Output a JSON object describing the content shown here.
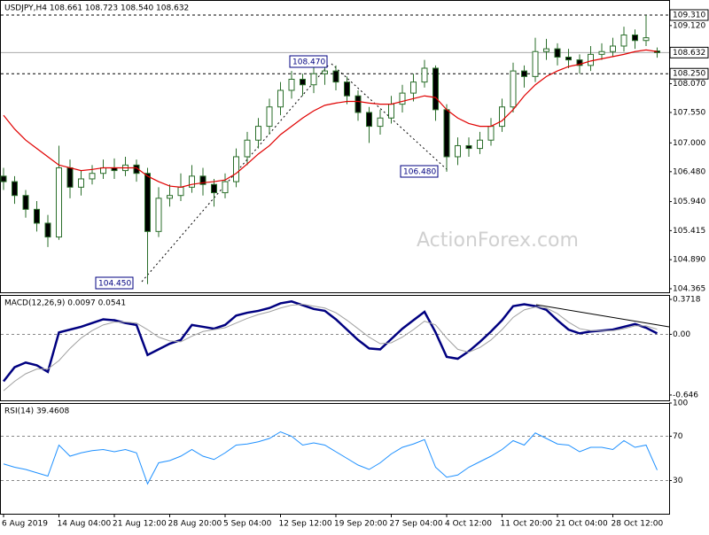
{
  "chart_data": [
    {
      "type": "candlestick",
      "title": "USDJPY,H4  108.661 108.723 108.540 108.632",
      "watermark": "ActionForex.com",
      "categories": [
        "6 Aug 2019",
        null,
        null,
        null,
        null,
        "14 Aug 04:00",
        null,
        null,
        null,
        null,
        "21 Aug 12:00",
        null,
        null,
        null,
        null,
        "28 Aug 20:00",
        null,
        null,
        null,
        null,
        "5 Sep 04:00",
        null,
        null,
        null,
        null,
        "12 Sep 12:00",
        null,
        null,
        null,
        null,
        "19 Sep 20:00",
        null,
        null,
        null,
        null,
        "27 Sep 04:00",
        null,
        null,
        null,
        null,
        "4 Oct 12:00",
        null,
        null,
        null,
        null,
        "11 Oct 20:00",
        null,
        null,
        null,
        null,
        "21 Oct 04:00",
        null,
        null,
        null,
        null,
        "28 Oct 12:00",
        null,
        null,
        null,
        null
      ],
      "open": [
        106.4,
        106.3,
        106.05,
        105.8,
        105.55,
        105.3,
        106.55,
        106.2,
        106.35,
        106.45,
        106.55,
        106.5,
        106.6,
        106.45,
        105.4,
        106.0,
        106.05,
        106.2,
        106.4,
        106.25,
        106.1,
        106.3,
        106.75,
        107.05,
        107.3,
        107.65,
        107.95,
        108.15,
        108.05,
        108.25,
        108.3,
        108.1,
        107.85,
        107.55,
        107.3,
        107.45,
        107.7,
        107.9,
        108.1,
        108.35,
        107.6,
        106.75,
        106.95,
        106.9,
        107.05,
        107.3,
        107.65,
        108.3,
        108.2,
        108.65,
        108.7,
        108.55,
        108.5,
        108.4,
        108.6,
        108.65,
        108.75,
        108.95,
        108.85,
        108.661
      ],
      "high": [
        106.55,
        106.4,
        106.15,
        105.95,
        105.7,
        106.95,
        106.7,
        106.5,
        106.6,
        106.7,
        106.72,
        106.75,
        106.7,
        106.55,
        106.2,
        106.25,
        106.45,
        106.6,
        106.55,
        106.35,
        106.45,
        106.9,
        107.2,
        107.45,
        107.8,
        108.1,
        108.3,
        108.25,
        108.4,
        108.47,
        108.4,
        108.2,
        107.95,
        107.65,
        107.6,
        107.85,
        108.05,
        108.25,
        108.5,
        108.4,
        107.7,
        107.1,
        107.1,
        107.2,
        107.45,
        107.8,
        108.45,
        108.4,
        108.9,
        108.88,
        108.8,
        108.7,
        108.6,
        108.75,
        108.8,
        108.9,
        109.1,
        109.05,
        109.31,
        108.723
      ],
      "low": [
        106.15,
        105.9,
        105.65,
        105.4,
        105.12,
        105.25,
        106.0,
        106.05,
        106.25,
        106.35,
        106.35,
        106.4,
        106.3,
        104.45,
        105.3,
        105.85,
        105.95,
        106.1,
        106.05,
        105.85,
        106.0,
        106.2,
        106.6,
        106.9,
        107.15,
        107.5,
        107.8,
        107.85,
        107.9,
        108.05,
        107.95,
        107.7,
        107.4,
        107.0,
        107.15,
        107.35,
        107.55,
        107.75,
        108.0,
        107.4,
        106.48,
        106.6,
        106.75,
        106.8,
        106.95,
        107.2,
        107.55,
        108.0,
        108.1,
        108.5,
        108.4,
        108.35,
        108.25,
        108.3,
        108.5,
        108.55,
        108.65,
        108.7,
        108.75,
        108.54
      ],
      "close": [
        106.3,
        106.05,
        105.8,
        105.55,
        105.3,
        106.55,
        106.2,
        106.35,
        106.45,
        106.55,
        106.5,
        106.6,
        106.45,
        105.4,
        106.0,
        106.05,
        106.2,
        106.4,
        106.25,
        106.1,
        106.3,
        106.75,
        107.05,
        107.3,
        107.65,
        107.95,
        108.15,
        108.05,
        108.25,
        108.3,
        108.1,
        107.85,
        107.55,
        107.3,
        107.45,
        107.7,
        107.9,
        108.1,
        108.35,
        107.6,
        106.75,
        106.95,
        106.9,
        107.05,
        107.3,
        107.65,
        108.3,
        108.2,
        108.65,
        108.7,
        108.55,
        108.5,
        108.4,
        108.6,
        108.65,
        108.75,
        108.95,
        108.85,
        108.9,
        108.632
      ],
      "candle_color": "#2a6e2a",
      "bull_fill": "#ffffff",
      "bear_fill": "#000000",
      "series": [
        {
          "color": "#e00000",
          "values": [
            107.5,
            107.25,
            107.05,
            106.9,
            106.75,
            106.6,
            106.55,
            106.5,
            106.52,
            106.55,
            106.55,
            106.55,
            106.55,
            106.4,
            106.3,
            106.22,
            106.2,
            106.25,
            106.28,
            106.3,
            106.33,
            106.45,
            106.62,
            106.8,
            106.95,
            107.15,
            107.3,
            107.45,
            107.58,
            107.68,
            107.72,
            107.75,
            107.75,
            107.72,
            107.7,
            107.7,
            107.75,
            107.8,
            107.85,
            107.82,
            107.6,
            107.45,
            107.35,
            107.3,
            107.3,
            107.4,
            107.6,
            107.85,
            108.05,
            108.2,
            108.3,
            108.38,
            108.42,
            108.48,
            108.52,
            108.56,
            108.6,
            108.65,
            108.68,
            108.65
          ]
        }
      ],
      "ylim": [
        104.301,
        109.582
      ],
      "yticks": [
        {
          "value": 109.12,
          "label": "109.120"
        },
        {
          "value": 108.07,
          "label": "108.070"
        },
        {
          "value": 107.55,
          "label": "107.550"
        },
        {
          "value": 107.0,
          "label": "107.000"
        },
        {
          "value": 106.48,
          "label": "106.480"
        },
        {
          "value": 105.94,
          "label": "105.940"
        },
        {
          "value": 105.415,
          "label": "105.415"
        },
        {
          "value": 104.89,
          "label": "104.890"
        },
        {
          "value": 104.365,
          "label": "104.365"
        }
      ],
      "grid": false,
      "levels": [
        {
          "value": 109.31,
          "label": "109.310",
          "style": "dashed"
        },
        {
          "value": 108.632,
          "label": "108.632",
          "style": "solid"
        },
        {
          "value": 108.25,
          "label": "108.250",
          "style": "dashed"
        }
      ],
      "annotations": [
        {
          "text": "108.470"
        },
        {
          "text": "104.450"
        },
        {
          "text": "106.480"
        }
      ]
    },
    {
      "type": "line",
      "title": "MACD(12,26,9) 0.0097 0.0541",
      "series": [
        {
          "color": "#000080",
          "width": 2.5,
          "values": [
            -0.5,
            -0.35,
            -0.3,
            -0.33,
            -0.4,
            0.02,
            0.05,
            0.08,
            0.12,
            0.16,
            0.15,
            0.12,
            0.1,
            -0.22,
            -0.16,
            -0.1,
            -0.06,
            0.1,
            0.08,
            0.06,
            0.1,
            0.2,
            0.23,
            0.25,
            0.28,
            0.33,
            0.35,
            0.31,
            0.27,
            0.25,
            0.16,
            0.05,
            -0.06,
            -0.15,
            -0.16,
            -0.05,
            0.06,
            0.15,
            0.24,
            0.02,
            -0.24,
            -0.26,
            -0.18,
            -0.08,
            0.03,
            0.15,
            0.3,
            0.32,
            0.3,
            0.26,
            0.15,
            0.05,
            0.01,
            0.03,
            0.04,
            0.05,
            0.08,
            0.11,
            0.07,
            0.0097
          ]
        },
        {
          "color": "#a0a0a0",
          "width": 1,
          "values": [
            -0.6,
            -0.5,
            -0.42,
            -0.37,
            -0.37,
            -0.28,
            -0.15,
            -0.04,
            0.04,
            0.1,
            0.13,
            0.13,
            0.12,
            0.05,
            -0.03,
            -0.07,
            -0.08,
            -0.02,
            0.03,
            0.05,
            0.07,
            0.12,
            0.17,
            0.21,
            0.24,
            0.28,
            0.31,
            0.32,
            0.3,
            0.28,
            0.23,
            0.15,
            0.06,
            -0.03,
            -0.1,
            -0.09,
            -0.03,
            0.05,
            0.14,
            0.1,
            -0.04,
            -0.16,
            -0.19,
            -0.14,
            -0.06,
            0.05,
            0.18,
            0.26,
            0.29,
            0.28,
            0.22,
            0.13,
            0.06,
            0.04,
            0.04,
            0.04,
            0.06,
            0.09,
            0.09,
            0.0541
          ]
        }
      ],
      "ylim": [
        -0.703,
        0.419
      ],
      "yticks": [
        0.3718,
        {
          "value": 0,
          "label": "0.00"
        },
        -0.646
      ],
      "grid": [
        false,
        true,
        false
      ]
    },
    {
      "type": "line",
      "title": "RSI(14) 39.4608",
      "series": [
        {
          "color": "#1e90ff",
          "width": 1,
          "values": [
            45,
            42,
            40,
            37,
            34,
            62,
            52,
            55,
            57,
            58,
            56,
            58,
            55,
            27,
            46,
            48,
            52,
            58,
            52,
            49,
            55,
            62,
            63,
            65,
            68,
            74,
            70,
            62,
            64,
            62,
            56,
            50,
            44,
            40,
            46,
            54,
            60,
            63,
            67,
            42,
            33,
            35,
            42,
            47,
            52,
            58,
            66,
            62,
            73,
            68,
            63,
            62,
            56,
            60,
            60,
            58,
            66,
            60,
            62,
            39.4608
          ]
        }
      ],
      "ylim": [
        0,
        100
      ],
      "yticks": [
        30,
        70,
        100
      ],
      "grid": [
        true,
        true,
        false
      ]
    }
  ]
}
